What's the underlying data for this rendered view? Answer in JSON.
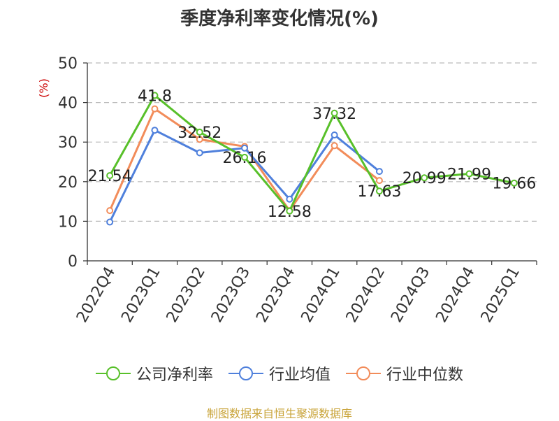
{
  "chart_data": {
    "type": "line",
    "title": "季度净利率变化情况(%)",
    "ylabel": "(%)",
    "ylim": [
      0,
      50
    ],
    "yticks": [
      0,
      10,
      20,
      30,
      40,
      50
    ],
    "grid": true,
    "legend_position": "bottom",
    "categories": [
      "2022Q4",
      "2023Q1",
      "2023Q2",
      "2023Q3",
      "2023Q4",
      "2024Q1",
      "2024Q2",
      "2024Q3",
      "2024Q4",
      "2025Q1"
    ],
    "series": [
      {
        "name": "公司净利率",
        "color": "#58c02a",
        "values": [
          21.54,
          41.8,
          32.52,
          26.16,
          12.58,
          37.32,
          17.63,
          20.99,
          21.99,
          19.66
        ],
        "labels": [
          "21.54",
          "41.8",
          "32.52",
          "26.16",
          "12.58",
          "37.32",
          "17.63",
          "20.99",
          "21.99",
          "19.66"
        ]
      },
      {
        "name": "行业均值",
        "color": "#4f80dc",
        "values": [
          9.8,
          33.0,
          27.3,
          28.5,
          15.6,
          31.8,
          22.6,
          null,
          null,
          null
        ]
      },
      {
        "name": "行业中位数",
        "color": "#f28c5a",
        "values": [
          12.7,
          38.4,
          30.7,
          28.9,
          12.7,
          29.1,
          20.3,
          null,
          null,
          null
        ]
      }
    ]
  },
  "source": "制图数据来自恒生聚源数据库"
}
